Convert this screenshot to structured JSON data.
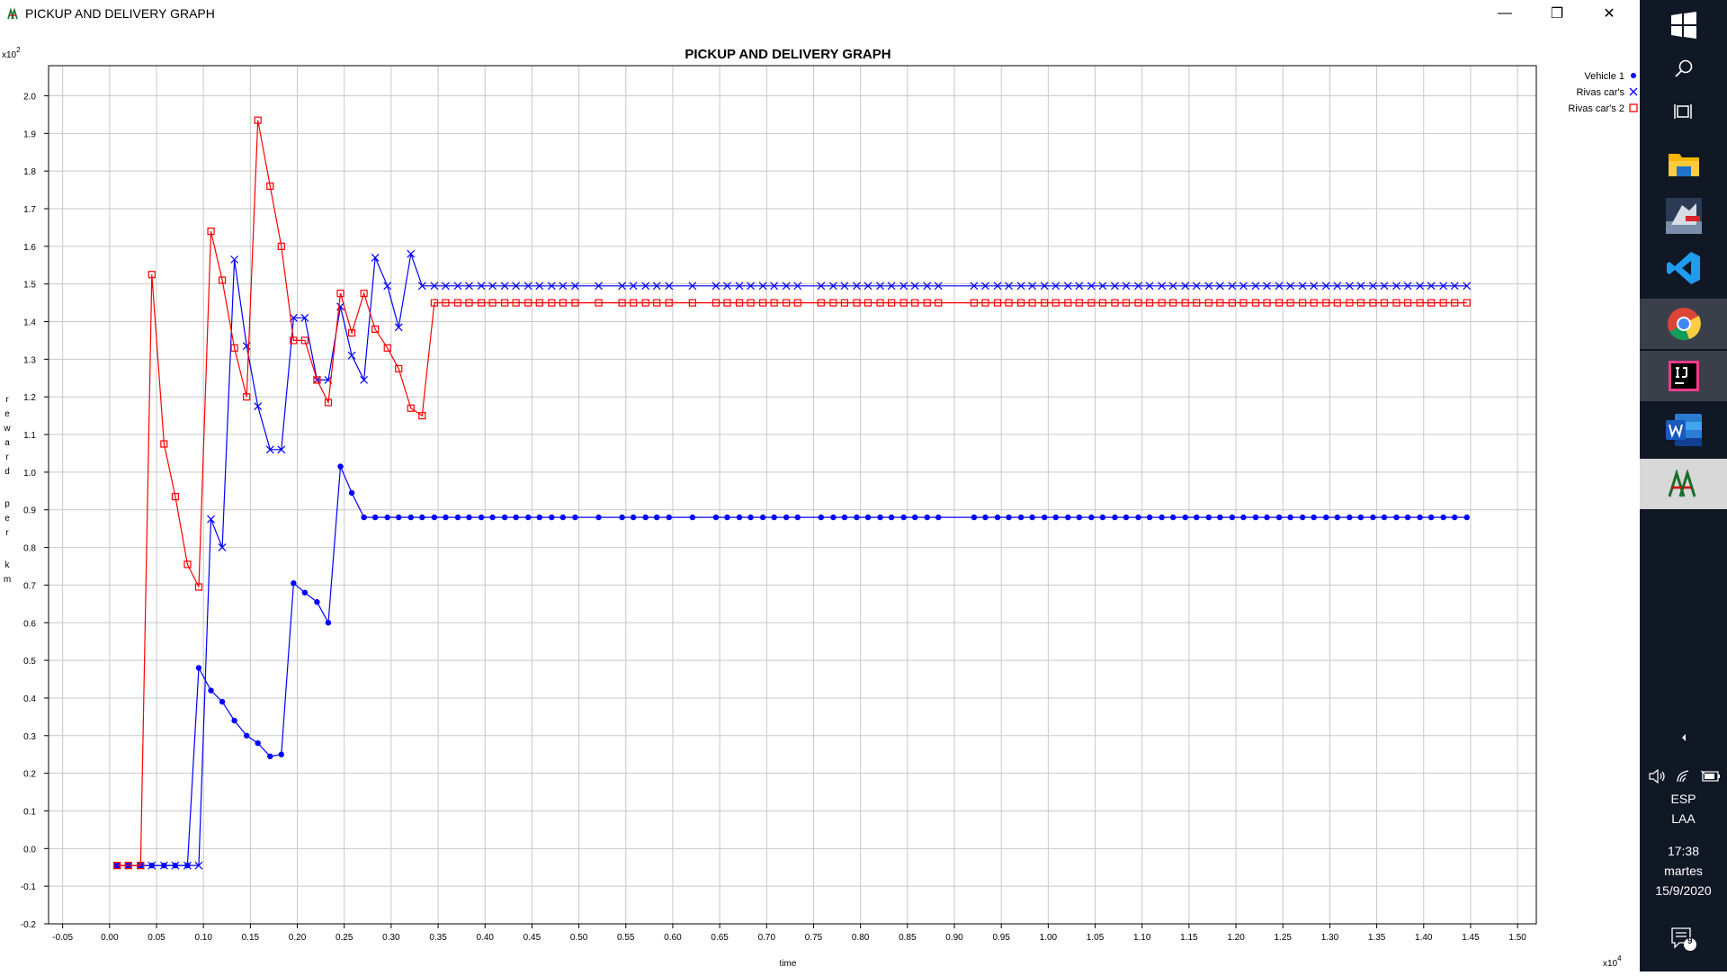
{
  "window": {
    "title": "PICKUP AND DELIVERY GRAPH",
    "controls": {
      "minimize": "—",
      "maximize": "❐",
      "close": "✕"
    }
  },
  "taskbar": {
    "language": "ESP",
    "layout": "LAA",
    "time": "17:38",
    "day": "martes",
    "date": "15/9/2020",
    "notifications": "9"
  },
  "chart_data": {
    "type": "line",
    "title": "PICKUP AND DELIVERY GRAPH",
    "xlabel": "time",
    "ylabel": "reward per km",
    "x_multiplier": "x10",
    "x_multiplier_exp": "4",
    "y_multiplier": "x10",
    "y_multiplier_exp": "2",
    "xlim": [
      -0.065,
      1.52
    ],
    "ylim": [
      -0.2,
      2.08
    ],
    "x_ticks": [
      "-0.05",
      "0.00",
      "0.05",
      "0.10",
      "0.15",
      "0.20",
      "0.25",
      "0.30",
      "0.35",
      "0.40",
      "0.45",
      "0.50",
      "0.55",
      "0.60",
      "0.65",
      "0.70",
      "0.75",
      "0.80",
      "0.85",
      "0.90",
      "0.95",
      "1.00",
      "1.05",
      "1.10",
      "1.15",
      "1.20",
      "1.25",
      "1.30",
      "1.35",
      "1.40",
      "1.45",
      "1.50"
    ],
    "y_ticks": [
      "2.0",
      "1.9",
      "1.8",
      "1.7",
      "1.6",
      "1.5",
      "1.4",
      "1.3",
      "1.2",
      "1.1",
      "1.0",
      "0.9",
      "0.8",
      "0.7",
      "0.6",
      "0.5",
      "0.4",
      "0.3",
      "0.2",
      "0.1",
      "0.0",
      "-0.1",
      "-0.2"
    ],
    "grid": true,
    "legend": "top-right",
    "series": [
      {
        "name": "Vehicle 1",
        "color": "#0000ff",
        "marker": "dot",
        "x": [
          0.008,
          0.02,
          0.033,
          0.045,
          0.058,
          0.07,
          0.083,
          0.095,
          0.108,
          0.12,
          0.133,
          0.146,
          0.158,
          0.171,
          0.183,
          0.196,
          0.208,
          0.221,
          0.233,
          0.246,
          0.258,
          0.271,
          0.283,
          0.296,
          0.308,
          0.321,
          0.333,
          0.346,
          0.358,
          0.371,
          0.383,
          0.396,
          0.408,
          0.421,
          0.433,
          0.446,
          0.458,
          0.471,
          0.483,
          0.496,
          0.521,
          0.546,
          0.558,
          0.571,
          0.583,
          0.596,
          0.621,
          0.646,
          0.658,
          0.671,
          0.683,
          0.696,
          0.708,
          0.721,
          0.733,
          0.758,
          0.771,
          0.783,
          0.796,
          0.808,
          0.821,
          0.833,
          0.846,
          0.858,
          0.871,
          0.883,
          0.921,
          0.933,
          0.946,
          0.958,
          0.971,
          0.983,
          0.996,
          1.008,
          1.021,
          1.033,
          1.046,
          1.058,
          1.071,
          1.083,
          1.096,
          1.108,
          1.121,
          1.133,
          1.146,
          1.158,
          1.171,
          1.183,
          1.196,
          1.208,
          1.221,
          1.233,
          1.246,
          1.258,
          1.271,
          1.283,
          1.296,
          1.308,
          1.321,
          1.333,
          1.346,
          1.358,
          1.371,
          1.383,
          1.396,
          1.408,
          1.421,
          1.433,
          1.446
        ],
        "y": [
          -0.045,
          -0.045,
          -0.045,
          -0.045,
          -0.045,
          -0.045,
          -0.045,
          0.48,
          0.42,
          0.39,
          0.34,
          0.3,
          0.28,
          0.245,
          0.25,
          0.705,
          0.68,
          0.655,
          0.6,
          1.015,
          0.945,
          0.88,
          0.88,
          0.88,
          0.88,
          0.88,
          0.88,
          0.88,
          0.88,
          0.88,
          0.88,
          0.88,
          0.88,
          0.88,
          0.88,
          0.88,
          0.88,
          0.88,
          0.88,
          0.88,
          0.88,
          0.88,
          0.88,
          0.88,
          0.88,
          0.88,
          0.88,
          0.88,
          0.88,
          0.88,
          0.88,
          0.88,
          0.88,
          0.88,
          0.88,
          0.88,
          0.88,
          0.88,
          0.88,
          0.88,
          0.88,
          0.88,
          0.88,
          0.88,
          0.88,
          0.88,
          0.88,
          0.88,
          0.88,
          0.88,
          0.88,
          0.88,
          0.88,
          0.88,
          0.88,
          0.88,
          0.88,
          0.88,
          0.88,
          0.88,
          0.88,
          0.88,
          0.88,
          0.88,
          0.88,
          0.88,
          0.88,
          0.88,
          0.88,
          0.88,
          0.88,
          0.88,
          0.88,
          0.88,
          0.88,
          0.88,
          0.88,
          0.88,
          0.88,
          0.88,
          0.88,
          0.88,
          0.88,
          0.88,
          0.88,
          0.88,
          0.88,
          0.88,
          0.88
        ]
      },
      {
        "name": "Rivas car's",
        "color": "#0000ff",
        "marker": "x",
        "x": [
          0.008,
          0.02,
          0.033,
          0.045,
          0.058,
          0.07,
          0.083,
          0.095,
          0.108,
          0.12,
          0.133,
          0.146,
          0.158,
          0.171,
          0.183,
          0.196,
          0.208,
          0.221,
          0.233,
          0.246,
          0.258,
          0.271,
          0.283,
          0.296,
          0.308,
          0.321,
          0.333,
          0.346,
          0.358,
          0.371,
          0.383,
          0.396,
          0.408,
          0.421,
          0.433,
          0.446,
          0.458,
          0.471,
          0.483,
          0.496,
          0.521,
          0.546,
          0.558,
          0.571,
          0.583,
          0.596,
          0.621,
          0.646,
          0.658,
          0.671,
          0.683,
          0.696,
          0.708,
          0.721,
          0.733,
          0.758,
          0.771,
          0.783,
          0.796,
          0.808,
          0.821,
          0.833,
          0.846,
          0.858,
          0.871,
          0.883,
          0.921,
          0.933,
          0.946,
          0.958,
          0.971,
          0.983,
          0.996,
          1.008,
          1.021,
          1.033,
          1.046,
          1.058,
          1.071,
          1.083,
          1.096,
          1.108,
          1.121,
          1.133,
          1.146,
          1.158,
          1.171,
          1.183,
          1.196,
          1.208,
          1.221,
          1.233,
          1.246,
          1.258,
          1.271,
          1.283,
          1.296,
          1.308,
          1.321,
          1.333,
          1.346,
          1.358,
          1.371,
          1.383,
          1.396,
          1.408,
          1.421,
          1.433,
          1.446
        ],
        "y": [
          -0.045,
          -0.045,
          -0.045,
          -0.045,
          -0.045,
          -0.045,
          -0.045,
          -0.045,
          0.875,
          0.8,
          1.565,
          1.335,
          1.175,
          1.06,
          1.06,
          1.41,
          1.41,
          1.245,
          1.245,
          1.44,
          1.31,
          1.245,
          1.57,
          1.495,
          1.385,
          1.58,
          1.495,
          1.495,
          1.495,
          1.495,
          1.495,
          1.495,
          1.495,
          1.495,
          1.495,
          1.495,
          1.495,
          1.495,
          1.495,
          1.495,
          1.495,
          1.495,
          1.495,
          1.495,
          1.495,
          1.495,
          1.495,
          1.495,
          1.495,
          1.495,
          1.495,
          1.495,
          1.495,
          1.495,
          1.495,
          1.495,
          1.495,
          1.495,
          1.495,
          1.495,
          1.495,
          1.495,
          1.495,
          1.495,
          1.495,
          1.495,
          1.495,
          1.495,
          1.495,
          1.495,
          1.495,
          1.495,
          1.495,
          1.495,
          1.495,
          1.495,
          1.495,
          1.495,
          1.495,
          1.495,
          1.495,
          1.495,
          1.495,
          1.495,
          1.495,
          1.495,
          1.495,
          1.495,
          1.495,
          1.495,
          1.495,
          1.495,
          1.495,
          1.495,
          1.495,
          1.495,
          1.495,
          1.495,
          1.495,
          1.495,
          1.495,
          1.495,
          1.495,
          1.495,
          1.495,
          1.495,
          1.495,
          1.495,
          1.495
        ]
      },
      {
        "name": "Rivas car's 2",
        "color": "#ff0000",
        "marker": "square",
        "x": [
          0.008,
          0.02,
          0.033,
          0.045,
          0.058,
          0.07,
          0.083,
          0.095,
          0.108,
          0.12,
          0.133,
          0.146,
          0.158,
          0.171,
          0.183,
          0.196,
          0.208,
          0.221,
          0.233,
          0.246,
          0.258,
          0.271,
          0.283,
          0.296,
          0.308,
          0.321,
          0.333,
          0.346,
          0.358,
          0.371,
          0.383,
          0.396,
          0.408,
          0.421,
          0.433,
          0.446,
          0.458,
          0.471,
          0.483,
          0.496,
          0.521,
          0.546,
          0.558,
          0.571,
          0.583,
          0.596,
          0.621,
          0.646,
          0.658,
          0.671,
          0.683,
          0.696,
          0.708,
          0.721,
          0.733,
          0.758,
          0.771,
          0.783,
          0.796,
          0.808,
          0.821,
          0.833,
          0.846,
          0.858,
          0.871,
          0.883,
          0.921,
          0.933,
          0.946,
          0.958,
          0.971,
          0.983,
          0.996,
          1.008,
          1.021,
          1.033,
          1.046,
          1.058,
          1.071,
          1.083,
          1.096,
          1.108,
          1.121,
          1.133,
          1.146,
          1.158,
          1.171,
          1.183,
          1.196,
          1.208,
          1.221,
          1.233,
          1.246,
          1.258,
          1.271,
          1.283,
          1.296,
          1.308,
          1.321,
          1.333,
          1.346,
          1.358,
          1.371,
          1.383,
          1.396,
          1.408,
          1.421,
          1.433,
          1.446
        ],
        "y": [
          -0.045,
          -0.045,
          -0.045,
          1.525,
          1.075,
          0.935,
          0.755,
          0.695,
          1.64,
          1.51,
          1.33,
          1.2,
          1.935,
          1.76,
          1.6,
          1.35,
          1.35,
          1.245,
          1.185,
          1.475,
          1.37,
          1.475,
          1.38,
          1.33,
          1.275,
          1.17,
          1.15,
          1.45,
          1.45,
          1.45,
          1.45,
          1.45,
          1.45,
          1.45,
          1.45,
          1.45,
          1.45,
          1.45,
          1.45,
          1.45,
          1.45,
          1.45,
          1.45,
          1.45,
          1.45,
          1.45,
          1.45,
          1.45,
          1.45,
          1.45,
          1.45,
          1.45,
          1.45,
          1.45,
          1.45,
          1.45,
          1.45,
          1.45,
          1.45,
          1.45,
          1.45,
          1.45,
          1.45,
          1.45,
          1.45,
          1.45,
          1.45,
          1.45,
          1.45,
          1.45,
          1.45,
          1.45,
          1.45,
          1.45,
          1.45,
          1.45,
          1.45,
          1.45,
          1.45,
          1.45,
          1.45,
          1.45,
          1.45,
          1.45,
          1.45,
          1.45,
          1.45,
          1.45,
          1.45,
          1.45,
          1.45,
          1.45,
          1.45,
          1.45,
          1.45,
          1.45,
          1.45,
          1.45,
          1.45,
          1.45,
          1.45,
          1.45,
          1.45,
          1.45,
          1.45,
          1.45,
          1.45,
          1.45,
          1.45
        ]
      }
    ]
  }
}
